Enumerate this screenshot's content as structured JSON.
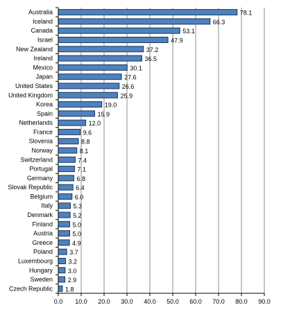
{
  "chart_data": {
    "type": "bar",
    "orientation": "horizontal",
    "categories": [
      "Australia",
      "Iceland",
      "Canada",
      "Israel",
      "New Zealand",
      "Ireland",
      "Mexico",
      "Japan",
      "United States",
      "United Kingdom",
      "Korea",
      "Spain",
      "Netherlands",
      "France",
      "Slovenia",
      "Norway",
      "Switzerland",
      "Portugal",
      "Germany",
      "Slovak Republic",
      "Belgium",
      "Italy",
      "Denmark",
      "Finland",
      "Austria",
      "Greece",
      "Poland",
      "Luxembourg",
      "Hungary",
      "Sweden",
      "Czech Republic"
    ],
    "values": [
      78.1,
      66.3,
      53.1,
      47.9,
      37.2,
      36.5,
      30.1,
      27.6,
      26.6,
      25.9,
      19.0,
      15.9,
      12.0,
      9.6,
      8.8,
      8.1,
      7.4,
      7.1,
      6.8,
      6.4,
      6.0,
      5.3,
      5.2,
      5.0,
      5.0,
      4.9,
      3.7,
      3.2,
      3.0,
      2.9,
      1.8
    ],
    "value_labels": [
      "78.1",
      "66.3",
      "53.1",
      "47.9",
      "37.2",
      "36.5",
      "30.1",
      "27.6",
      "26.6",
      "25.9",
      "19.0",
      "15.9",
      "12.0",
      "9.6",
      "8.8",
      "8.1",
      "7.4",
      "7.1",
      "6.8",
      "6.4",
      "6.0",
      "5.3",
      "5.2",
      "5.0",
      "5.0",
      "4.9",
      "3.7",
      "3.2",
      "3.0",
      "2.9",
      "1.8"
    ],
    "x_ticks": [
      "0.0",
      "10.0",
      "20.0",
      "30.0",
      "40.0",
      "50.0",
      "60.0",
      "70.0",
      "80.0",
      "90.0"
    ],
    "xlim": [
      0,
      90
    ],
    "grid": "vertical",
    "legend": "none",
    "bar_color": "#4f81bd",
    "bar_border_color": "#17375e",
    "grid_color": "#8c8c8c"
  }
}
